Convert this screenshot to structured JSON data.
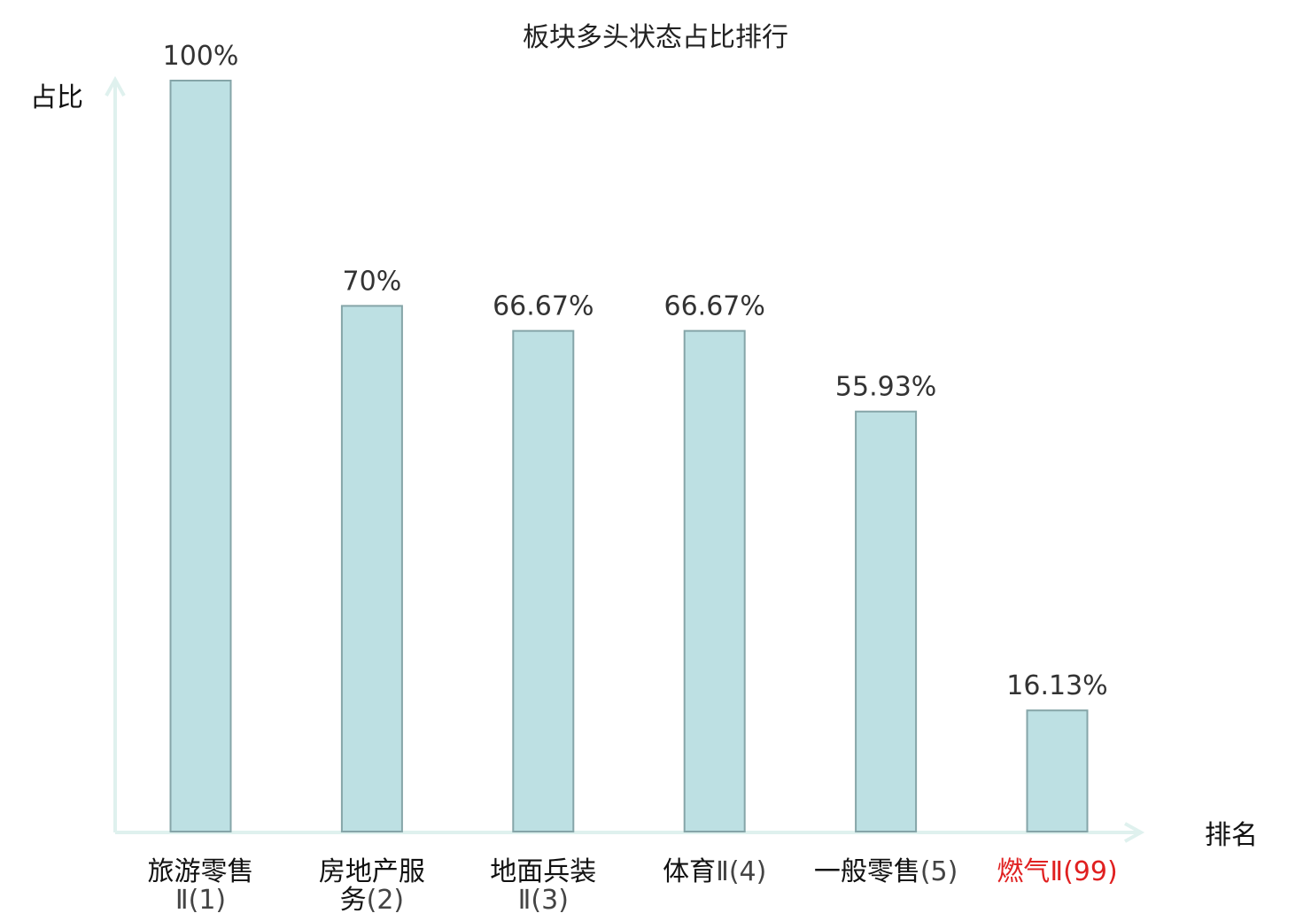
{
  "chart_data": {
    "type": "bar",
    "title": "板块多头状态占比排行",
    "ylabel": "占比",
    "xlabel": "排名",
    "ylim": [
      0,
      100
    ],
    "grid": false,
    "categories": [
      {
        "lines": [
          {
            "name": "旅游零售",
            "suffix": ""
          },
          {
            "name": "",
            "suffix": "Ⅱ(1)"
          }
        ],
        "highlight": false
      },
      {
        "lines": [
          {
            "name": "房地产服",
            "suffix": ""
          },
          {
            "name": "务",
            "suffix": "(2)"
          }
        ],
        "highlight": false
      },
      {
        "lines": [
          {
            "name": "地面兵装",
            "suffix": ""
          },
          {
            "name": "",
            "suffix": "Ⅱ(3)"
          }
        ],
        "highlight": false
      },
      {
        "lines": [
          {
            "name": "体育",
            "suffix": "Ⅱ(4)"
          }
        ],
        "highlight": false
      },
      {
        "lines": [
          {
            "name": "一般零售",
            "suffix": "(5)"
          }
        ],
        "highlight": false
      },
      {
        "lines": [
          {
            "name": "燃气",
            "suffix": "Ⅱ(99)"
          }
        ],
        "highlight": true
      }
    ],
    "values": [
      100,
      70,
      66.67,
      66.67,
      55.93,
      16.13
    ],
    "value_labels": [
      "100%",
      "70%",
      "66.67%",
      "66.67%",
      "55.93%",
      "16.13%"
    ],
    "colors": {
      "bar_fill": "#bde0e3",
      "bar_stroke": "#85a5a8",
      "axis": "#dff1ee",
      "highlight_text": "#e02020",
      "category_text": "#111111",
      "suffix_text": "#444444"
    }
  }
}
